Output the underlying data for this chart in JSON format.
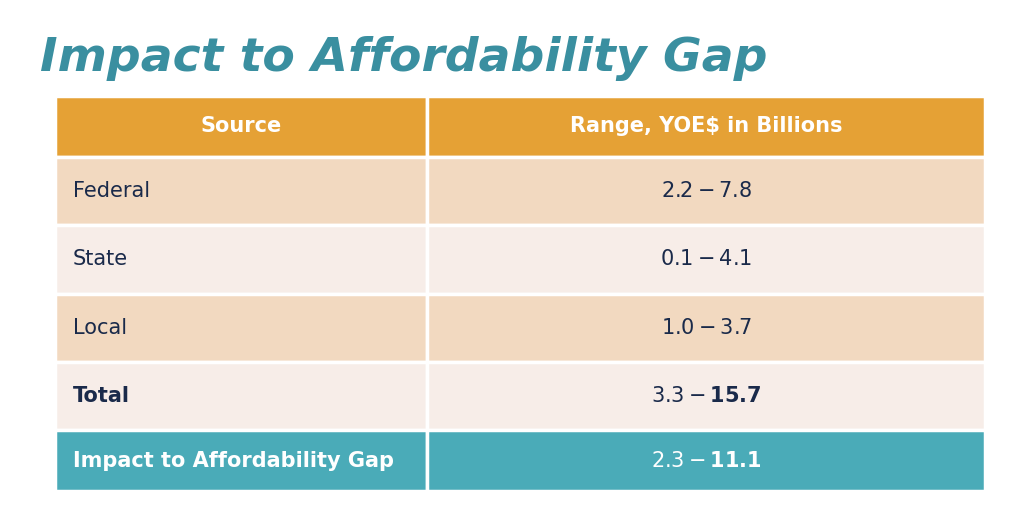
{
  "title": "Impact to Affordability Gap",
  "title_color": "#3a8fa0",
  "title_fontsize": 34,
  "background_color": "#ffffff",
  "col_headers": [
    "Source",
    "Range, YOE$ in Billions"
  ],
  "header_bg_color": "#e5a135",
  "header_text_color": "#ffffff",
  "header_fontsize": 15,
  "rows": [
    {
      "source": "Federal",
      "range": "$2.2 - $7.8",
      "bold": false
    },
    {
      "source": "State",
      "range": "$0.1 - $4.1",
      "bold": false
    },
    {
      "source": "Local",
      "range": "$1.0 - $3.7",
      "bold": false
    },
    {
      "source": "Total",
      "range": "$3.3 - $15.7",
      "bold": true
    }
  ],
  "row_bg_colors": [
    "#f2d9c0",
    "#f7ede8",
    "#f2d9c0",
    "#f7ede8"
  ],
  "row_text_color": "#1a2a4a",
  "row_fontsize": 15,
  "footer_row": {
    "source": "Impact to Affordability Gap",
    "range": "$2.3 - $11.1"
  },
  "footer_bg_color": "#4aabb8",
  "footer_text_color": "#ffffff",
  "footer_fontsize": 15,
  "fig_width": 10.24,
  "fig_height": 5.16,
  "dpi": 100
}
